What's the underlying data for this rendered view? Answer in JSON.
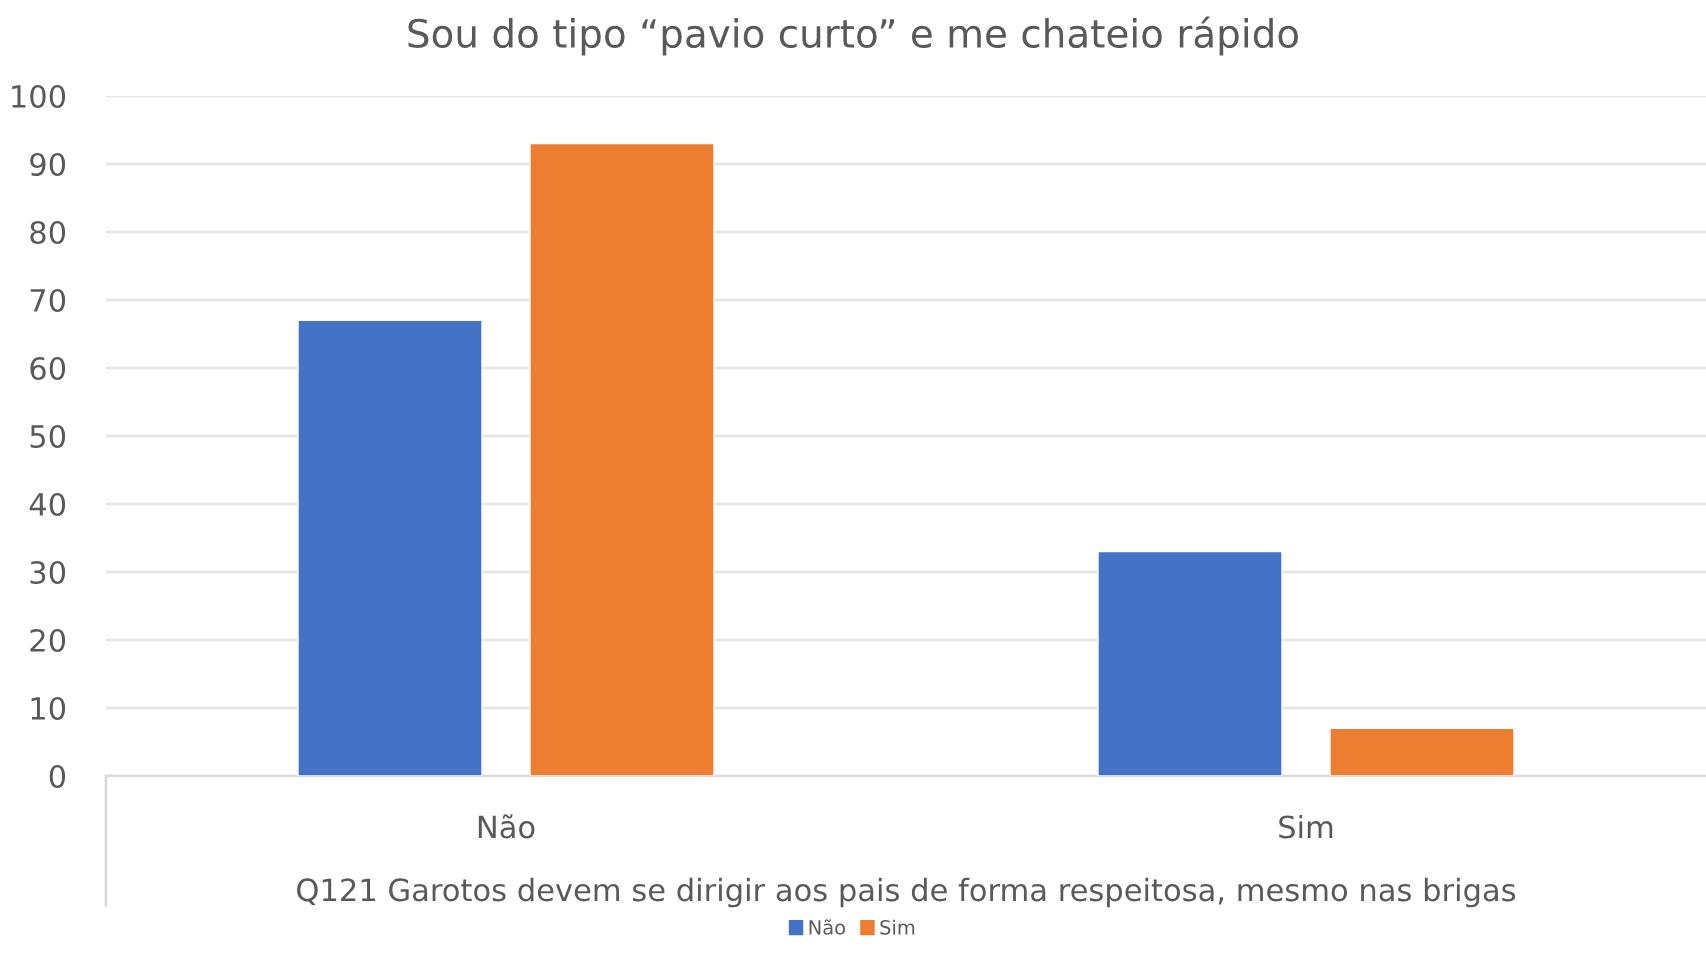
{
  "chart_data": {
    "type": "bar",
    "title": "Sou do tipo “pavio curto” e me chateio rápido",
    "xlabel": "Q121 Garotos devem se dirigir aos pais de forma respeitosa, mesmo nas brigas",
    "categories": [
      "Não",
      "Sim"
    ],
    "series": [
      {
        "name": "Não",
        "color": "#4472c4",
        "values": [
          67,
          33
        ]
      },
      {
        "name": "Sim",
        "color": "#ed7d31",
        "values": [
          93,
          7
        ]
      }
    ],
    "ylim": [
      0,
      100
    ],
    "yticks": [
      0,
      10,
      20,
      30,
      40,
      50,
      60,
      70,
      80,
      90,
      100
    ],
    "grid": "y",
    "legend": "bottom"
  }
}
